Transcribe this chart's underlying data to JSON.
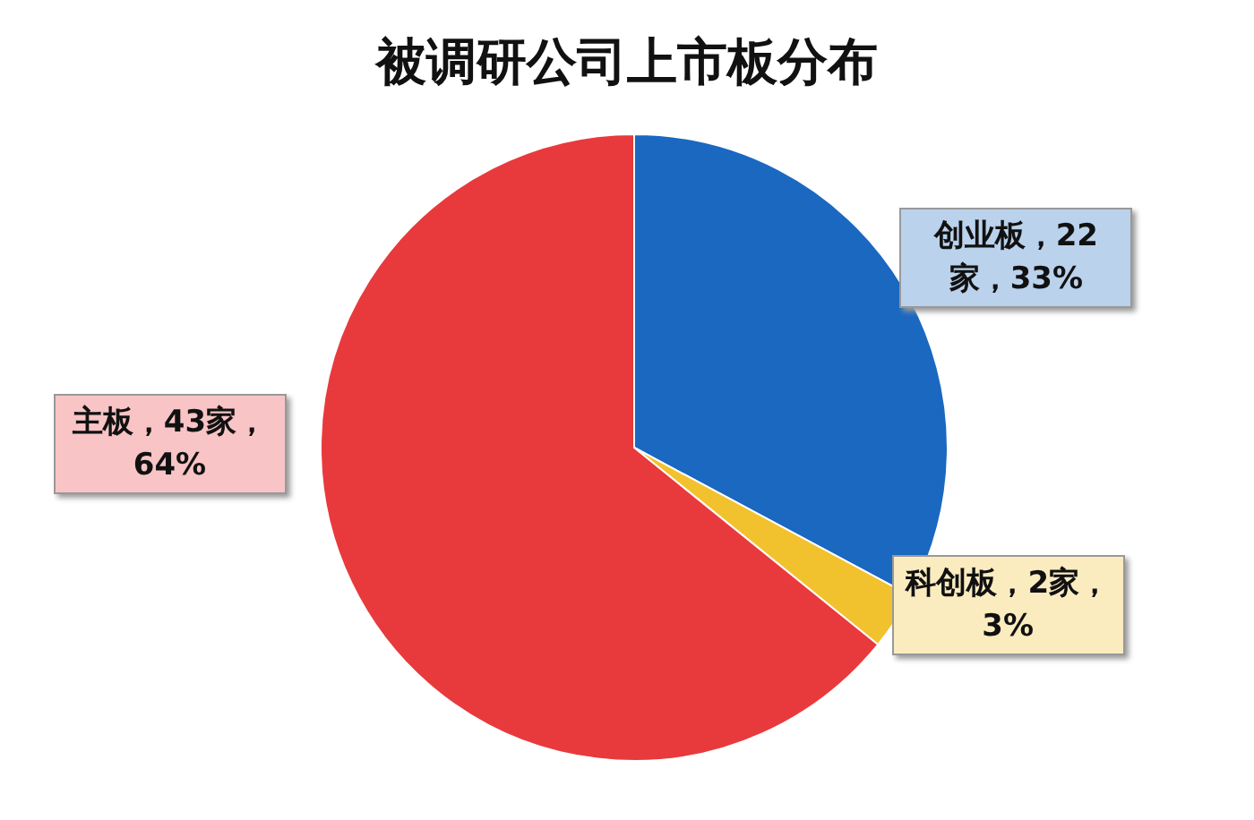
{
  "chart_data": {
    "type": "pie",
    "title": "被调研公司上市板分布",
    "categories": [
      "创业板",
      "科创板",
      "主板"
    ],
    "values": [
      22,
      2,
      43
    ],
    "colors": [
      "#1a68c0",
      "#f2c12e",
      "#e83a3c"
    ],
    "value_labels": [
      "，22家，33%",
      "，2家，3%",
      "，43家，64%"
    ]
  }
}
